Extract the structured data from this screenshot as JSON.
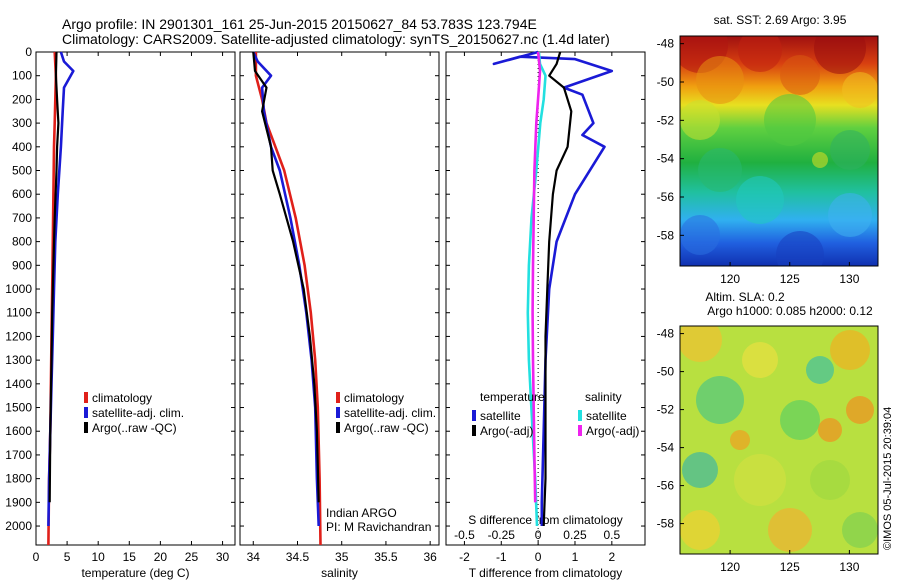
{
  "header": {
    "line1": "Argo profile: IN 2901301_161 25-Jun-2015 20150627_84 53.783S 123.794E",
    "line2": "Climatology: CARS2009. Satellite-adjusted climatology: synTS_20150627.nc (1.4d later)"
  },
  "colors": {
    "climatology": "#e0201a",
    "satellite": "#1a1ad6",
    "argo": "#000000",
    "cyan": "#22e0e0",
    "magenta": "#ee22ee"
  },
  "depth_ticks": [
    "0",
    "100",
    "200",
    "300",
    "400",
    "500",
    "600",
    "700",
    "800",
    "900",
    "1000",
    "1100",
    "1200",
    "1300",
    "1400",
    "1500",
    "1600",
    "1700",
    "1800",
    "1900",
    "2000"
  ],
  "chart_data": [
    {
      "type": "line",
      "id": "temperature",
      "xlabel": "temperature (deg C)",
      "ylabel": "",
      "xlim": [
        0,
        32
      ],
      "ylim": [
        2080,
        0
      ],
      "xticks": [
        "0",
        "5",
        "10",
        "15",
        "20",
        "25",
        "30"
      ],
      "xtick_values": [
        0,
        5,
        10,
        15,
        20,
        25,
        30
      ],
      "legend": [
        "climatology",
        "satellite-adj. clim.",
        "Argo(..raw -QC)"
      ],
      "series": [
        {
          "name": "climatology",
          "color_key": "climatology",
          "x": [
            3.0,
            3.2,
            3.1,
            3.0,
            2.9,
            2.8,
            2.7,
            2.6,
            2.5,
            2.4,
            2.3,
            2.1,
            2.0
          ],
          "y": [
            0,
            100,
            200,
            300,
            400,
            600,
            800,
            1000,
            1200,
            1400,
            1600,
            1800,
            2080
          ]
        },
        {
          "name": "satellite-adj. clim.",
          "color_key": "satellite",
          "x": [
            4.0,
            4.5,
            6.0,
            4.5,
            4.3,
            4.0,
            3.5,
            3.1,
            2.9,
            2.7,
            2.5,
            2.3,
            2.1,
            2.0
          ],
          "y": [
            0,
            40,
            80,
            150,
            250,
            400,
            600,
            800,
            1000,
            1200,
            1400,
            1600,
            1800,
            2000
          ]
        },
        {
          "name": "Argo(..raw -QC)",
          "color_key": "argo",
          "x": [
            3.3,
            3.2,
            3.4,
            3.6,
            3.4,
            3.3,
            3.0,
            2.8,
            2.6,
            2.5,
            2.3,
            2.2
          ],
          "y": [
            0,
            100,
            200,
            300,
            400,
            500,
            700,
            900,
            1100,
            1300,
            1600,
            1900
          ]
        }
      ]
    },
    {
      "type": "line",
      "id": "salinity",
      "xlabel": "salinity",
      "ylabel": "",
      "xlim": [
        33.85,
        36.1
      ],
      "ylim": [
        2080,
        0
      ],
      "xticks": [
        "34",
        "34.5",
        "35",
        "35.5",
        "36"
      ],
      "xtick_values": [
        34,
        34.5,
        35,
        35.5,
        36
      ],
      "legend": [
        "climatology",
        "satellite-adj. clim.",
        "Argo(..raw -QC)"
      ],
      "annotation": [
        "Indian ARGO",
        "PI: M Ravichandran"
      ],
      "series": [
        {
          "name": "climatology",
          "color_key": "climatology",
          "x": [
            34.03,
            34.03,
            34.1,
            34.15,
            34.25,
            34.35,
            34.48,
            34.58,
            34.65,
            34.7,
            34.73,
            34.75,
            34.76
          ],
          "y": [
            0,
            100,
            200,
            300,
            400,
            500,
            700,
            900,
            1100,
            1300,
            1500,
            1800,
            2080
          ]
        },
        {
          "name": "satellite-adj. clim.",
          "color_key": "satellite",
          "x": [
            34.0,
            34.05,
            34.2,
            34.1,
            34.12,
            34.2,
            34.3,
            34.42,
            34.52,
            34.6,
            34.66,
            34.7,
            34.72,
            34.74
          ],
          "y": [
            0,
            40,
            100,
            150,
            250,
            400,
            500,
            700,
            900,
            1100,
            1300,
            1500,
            1800,
            2000
          ]
        },
        {
          "name": "Argo(..raw -QC)",
          "color_key": "argo",
          "x": [
            34.0,
            34.02,
            34.15,
            34.1,
            34.2,
            34.22,
            34.3,
            34.45,
            34.57,
            34.64,
            34.69,
            34.72,
            34.74
          ],
          "y": [
            0,
            80,
            150,
            250,
            400,
            500,
            600,
            800,
            1000,
            1200,
            1400,
            1600,
            1900
          ]
        }
      ]
    },
    {
      "type": "line",
      "id": "difference",
      "xlabel": "T difference from climatology",
      "xlabel_top": "S difference from climatology",
      "xlim": [
        -2.5,
        2.9
      ],
      "ylim": [
        2080,
        0
      ],
      "xticks": [
        "-2",
        "-1",
        "0",
        "1",
        "2"
      ],
      "xtick_values": [
        -2,
        -1,
        0,
        1,
        2
      ],
      "sticks": [
        "-0.5",
        "-0.25",
        "0",
        "0.25",
        "0.5"
      ],
      "stick_values": [
        -0.5,
        -0.25,
        0,
        0.25,
        0.5
      ],
      "legend_heads": [
        "temperature",
        "salinity"
      ],
      "legend": [
        "satellite",
        "Argo(-adj)",
        "satellite",
        "Argo(-adj)"
      ],
      "series": [
        {
          "name": "temperature satellite",
          "color_key": "satellite",
          "x": [
            0,
            -1.2,
            -0.5,
            1.0,
            2.0,
            0.7,
            1.2,
            1.5,
            1.2,
            1.8,
            1.0,
            0.5,
            0.3,
            0.2,
            0.15,
            0.1,
            0.1
          ],
          "y": [
            0,
            50,
            20,
            30,
            80,
            150,
            180,
            300,
            350,
            400,
            600,
            800,
            1000,
            1300,
            1600,
            1900,
            2000
          ]
        },
        {
          "name": "temperature Argo(-adj)",
          "color_key": "argo",
          "x": [
            0.6,
            0.5,
            0.3,
            0.7,
            0.9,
            0.8,
            0.5,
            0.4,
            0.3,
            0.25,
            0.2,
            0.2,
            0.2,
            0.15
          ],
          "y": [
            0,
            50,
            100,
            150,
            250,
            400,
            500,
            600,
            800,
            1000,
            1200,
            1500,
            1800,
            2000
          ]
        },
        {
          "name": "salinity satellite",
          "color_key": "cyan",
          "x": [
            0.02,
            0.05,
            0.2,
            0.15,
            0.06,
            -0.05,
            -0.18,
            -0.25,
            -0.28,
            -0.25,
            -0.15,
            -0.08,
            -0.03
          ],
          "y": [
            0,
            50,
            100,
            200,
            300,
            500,
            700,
            900,
            1100,
            1300,
            1600,
            1800,
            2000
          ]
        },
        {
          "name": "salinity Argo(-adj)",
          "color_key": "magenta",
          "x": [
            0,
            0.05,
            0.02,
            -0.05,
            -0.1,
            -0.12,
            -0.14,
            -0.15,
            -0.14,
            -0.12,
            -0.1,
            -0.08
          ],
          "y": [
            0,
            80,
            150,
            300,
            500,
            700,
            900,
            1100,
            1300,
            1500,
            1700,
            1900
          ]
        }
      ]
    }
  ],
  "sst_map": {
    "title": "sat. SST: 2.69  Argo: 3.95",
    "yticks": [
      "-48",
      "-50",
      "-52",
      "-54",
      "-56",
      "-58"
    ],
    "ytick_values": [
      -48,
      -50,
      -52,
      -54,
      -56,
      -58
    ],
    "xticks": [
      "120",
      "125",
      "130"
    ],
    "xtick_values": [
      120,
      125,
      130
    ]
  },
  "sla_map": {
    "title1": "Altim. SLA: 0.2",
    "title2": "Argo h1000: 0.085 h2000: 0.12",
    "yticks": [
      "-48",
      "-50",
      "-52",
      "-54",
      "-56",
      "-58"
    ],
    "ytick_values": [
      -48,
      -50,
      -52,
      -54,
      -56,
      -58
    ],
    "xticks": [
      "120",
      "125",
      "130"
    ],
    "xtick_values": [
      120,
      125,
      130
    ]
  },
  "credit": "©IMOS 05-Jul-2015 20:39:04"
}
